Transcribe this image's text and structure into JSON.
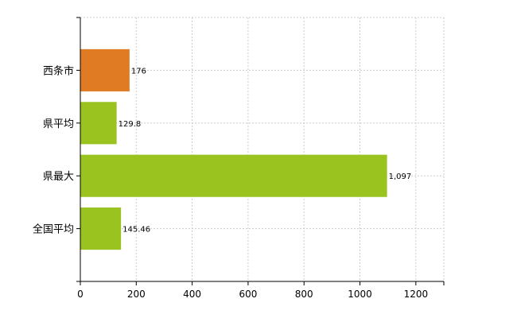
{
  "chart_data": {
    "type": "bar",
    "orientation": "horizontal",
    "categories": [
      "西条市",
      "県平均",
      "県最大",
      "全国平均"
    ],
    "values": [
      176,
      129.8,
      1097,
      145.46
    ],
    "value_labels": [
      "176",
      "129.8",
      "1,097",
      "145.46"
    ],
    "bar_colors": [
      "#e07b24",
      "#9bc31f",
      "#9bc31f",
      "#9bc31f"
    ],
    "xlim": [
      0,
      1300
    ],
    "xticks": [
      0,
      200,
      400,
      600,
      800,
      1000,
      1200
    ],
    "xtick_labels": [
      "0",
      "200",
      "400",
      "600",
      "800",
      "1000",
      "1200"
    ],
    "grid": true,
    "grid_style": "dashed",
    "title": "",
    "xlabel": "",
    "ylabel": ""
  }
}
